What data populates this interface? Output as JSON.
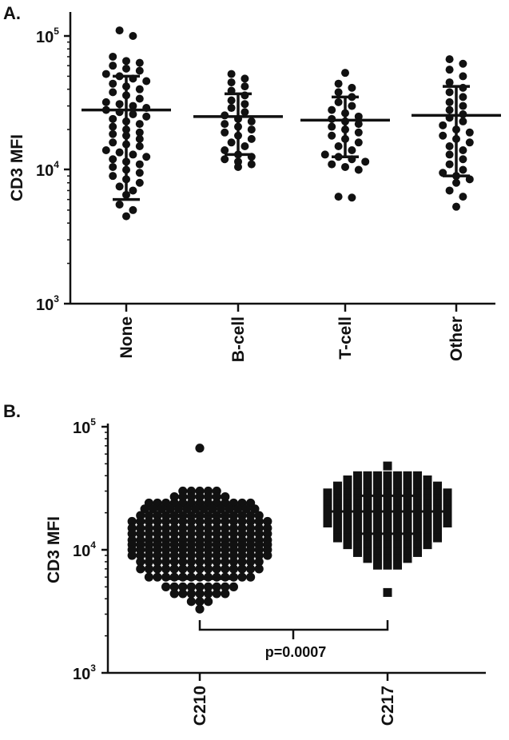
{
  "colors": {
    "ink": "#111111",
    "background": "#ffffff"
  },
  "chart_data": [
    {
      "panel_label": "A.",
      "type": "scatter",
      "ylabel": "CD3 MFI",
      "yscale": "log",
      "ylim": [
        1000,
        100000
      ],
      "yticks": [
        {
          "base": "10",
          "exp": "3",
          "value": 1000
        },
        {
          "base": "10",
          "exp": "4",
          "value": 10000
        },
        {
          "base": "10",
          "exp": "5",
          "value": 100000
        }
      ],
      "categories": [
        "None",
        "B-cell",
        "T-cell",
        "Other"
      ],
      "marker": "circle",
      "series": [
        {
          "category": "None",
          "mean": 28000,
          "sd_low": 6000,
          "sd_high": 50000,
          "values": [
            110000,
            100000,
            70000,
            65000,
            63000,
            60000,
            57000,
            55000,
            52000,
            50000,
            48000,
            46000,
            44000,
            42000,
            40000,
            38000,
            36000,
            34000,
            32000,
            31000,
            30000,
            29000,
            28000,
            27000,
            26000,
            25000,
            24000,
            23000,
            22000,
            21000,
            20000,
            19000,
            18500,
            18000,
            17000,
            16000,
            15500,
            15000,
            14000,
            13500,
            13000,
            12500,
            12000,
            11500,
            11000,
            10500,
            10000,
            9500,
            9000,
            8500,
            8000,
            7500,
            7000,
            6500,
            5500,
            5000,
            4500
          ]
        },
        {
          "category": "B-cell",
          "mean": 25000,
          "sd_low": 13000,
          "sd_high": 37000,
          "values": [
            52000,
            48000,
            45000,
            42000,
            39000,
            36000,
            33000,
            31000,
            29000,
            27000,
            25500,
            24000,
            23000,
            22000,
            21000,
            20000,
            19000,
            18000,
            17000,
            16000,
            15000,
            14000,
            13000,
            12500,
            12000,
            11500,
            11000,
            10500
          ]
        },
        {
          "category": "T-cell",
          "mean": 23500,
          "sd_low": 12500,
          "sd_high": 35000,
          "values": [
            53000,
            44000,
            41000,
            38000,
            35000,
            32000,
            30000,
            28000,
            26500,
            25000,
            24000,
            23000,
            22000,
            21000,
            20000,
            19000,
            18000,
            17000,
            16000,
            15000,
            14000,
            13000,
            12500,
            12000,
            11500,
            11000,
            10500,
            10000,
            6300,
            6200
          ]
        },
        {
          "category": "Other",
          "mean": 25500,
          "sd_low": 9000,
          "sd_high": 42000,
          "values": [
            67000,
            62000,
            56000,
            50000,
            45000,
            41000,
            38000,
            35000,
            32000,
            30000,
            28000,
            26000,
            24500,
            23000,
            21500,
            20000,
            19000,
            18000,
            17000,
            16000,
            15000,
            14000,
            13000,
            12000,
            11000,
            10000,
            9500,
            9000,
            8500,
            8000,
            7000,
            6300,
            5300
          ]
        }
      ]
    },
    {
      "panel_label": "B.",
      "type": "scatter",
      "ylabel": "CD3 MFI",
      "yscale": "log",
      "ylim": [
        1000,
        100000
      ],
      "yticks": [
        {
          "base": "10",
          "exp": "3",
          "value": 1000
        },
        {
          "base": "10",
          "exp": "4",
          "value": 10000
        },
        {
          "base": "10",
          "exp": "5",
          "value": 100000
        }
      ],
      "categories": [
        "C210",
        "C217"
      ],
      "annotation": "p=0.0007",
      "series": [
        {
          "category": "C210",
          "marker": "circle",
          "mean": 12000,
          "sd_low": 5800,
          "sd_high": 18500,
          "bands": [
            {
              "value": 67000,
              "count": 1
            },
            {
              "value": 30000,
              "count": 5
            },
            {
              "value": 27000,
              "count": 7
            },
            {
              "value": 24000,
              "count": 13
            },
            {
              "value": 21500,
              "count": 14
            },
            {
              "value": 19000,
              "count": 15
            },
            {
              "value": 17000,
              "count": 17
            },
            {
              "value": 15000,
              "count": 17
            },
            {
              "value": 13500,
              "count": 17
            },
            {
              "value": 12000,
              "count": 17
            },
            {
              "value": 11000,
              "count": 17
            },
            {
              "value": 10000,
              "count": 17
            },
            {
              "value": 9000,
              "count": 17
            },
            {
              "value": 8000,
              "count": 15
            },
            {
              "value": 7000,
              "count": 15
            },
            {
              "value": 6000,
              "count": 13
            },
            {
              "value": 5000,
              "count": 9
            },
            {
              "value": 4400,
              "count": 7
            },
            {
              "value": 3800,
              "count": 3
            },
            {
              "value": 3300,
              "count": 1
            }
          ]
        },
        {
          "category": "C217",
          "marker": "square",
          "mean": 20500,
          "sd_low": 13500,
          "sd_high": 27500,
          "bands": [
            {
              "value": 48000,
              "count": 1
            },
            {
              "value": 40000,
              "count": 7
            },
            {
              "value": 37000,
              "count": 9
            },
            {
              "value": 33000,
              "count": 11
            },
            {
              "value": 29000,
              "count": 13
            },
            {
              "value": 26000,
              "count": 13
            },
            {
              "value": 23500,
              "count": 13
            },
            {
              "value": 21000,
              "count": 13
            },
            {
              "value": 18500,
              "count": 13
            },
            {
              "value": 16500,
              "count": 13
            },
            {
              "value": 14500,
              "count": 11
            },
            {
              "value": 12500,
              "count": 11
            },
            {
              "value": 11000,
              "count": 9
            },
            {
              "value": 9500,
              "count": 7
            },
            {
              "value": 8500,
              "count": 5
            },
            {
              "value": 7500,
              "count": 3
            },
            {
              "value": 4500,
              "count": 1
            }
          ]
        }
      ]
    }
  ]
}
